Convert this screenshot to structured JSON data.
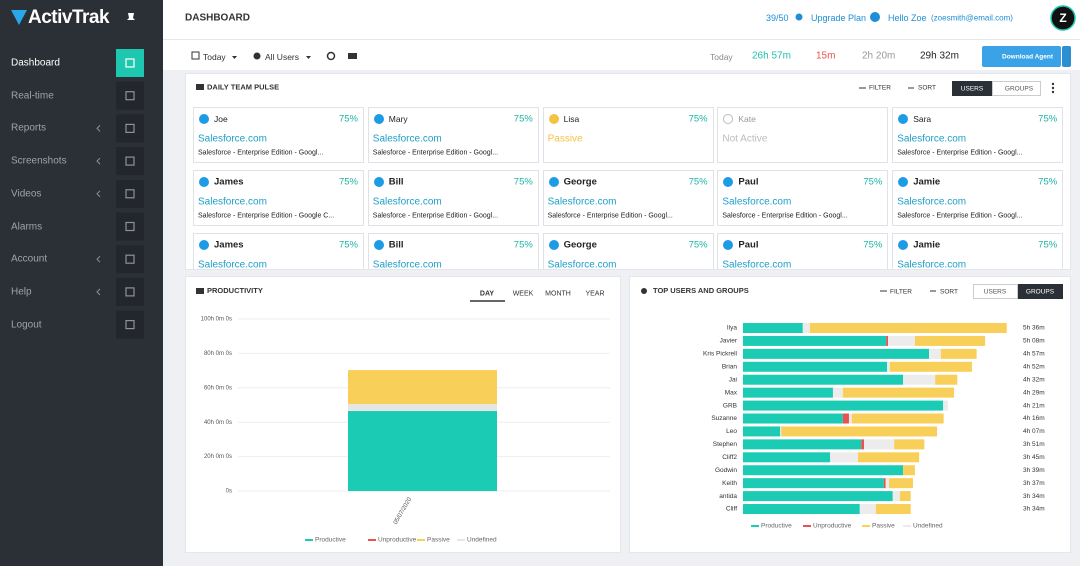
{
  "sidebar": {
    "logo": "ActivTrak",
    "items": [
      "Dashboard",
      "Real-time",
      "Reports",
      "Screenshots",
      "Videos",
      "Alarms",
      "Account",
      "Help",
      "Logout"
    ]
  },
  "header": {
    "title": "DASHBOARD",
    "license": "39/50",
    "upgrade": "Upgrade Plan",
    "greeting": "Hello Zoe",
    "email": "(zoesmith@email.com)",
    "avatar": "Z"
  },
  "toolbar": {
    "date": "Today",
    "users": "All Users",
    "summary_label": "Today",
    "productive": "26h 57m",
    "unproductive": "15m",
    "passive": "2h 20m",
    "total": "29h 32m",
    "download": "Download Agent"
  },
  "pulse": {
    "title": "DAILY TEAM PULSE",
    "filter": "FILTER",
    "sort": "SORT",
    "tabs": [
      "USERS",
      "GROUPS"
    ],
    "cards": [
      [
        {
          "name": "Joe",
          "percent": "75%",
          "app": "Salesforce.com",
          "detail": "Salesforce - Enterprise Edition - Googl...",
          "color": "#1e9be6"
        },
        {
          "name": "Mary",
          "percent": "75%",
          "app": "Salesforce.com",
          "detail": "Salesforce - Enterprise Edition - Googl...",
          "color": "#1e9be6"
        },
        {
          "name": "Lisa",
          "percent": "75%",
          "app": "Passive",
          "color": "#f5c342"
        },
        {
          "name": "Kate",
          "app": "Not Active",
          "color": "#b9bcc0"
        },
        {
          "name": "Sara",
          "percent": "75%",
          "app": "Salesforce.com",
          "detail": "Salesforce - Enterprise Edition - Googl...",
          "color": "#1e9be6"
        }
      ],
      [
        {
          "name": "James",
          "percent": "75%",
          "app": "Salesforce.com",
          "detail": "Salesforce - Enterprise Edition - Google C...",
          "color": "#1e9be6"
        },
        {
          "name": "Bill",
          "percent": "75%",
          "app": "Salesforce.com",
          "detail": "Salesforce - Enterprise Edition - Googl...",
          "color": "#1e9be6"
        },
        {
          "name": "George",
          "percent": "75%",
          "app": "Salesforce.com",
          "detail": "Salesforce - Enterprise Edition - Googl...",
          "color": "#1e9be6"
        },
        {
          "name": "Paul",
          "percent": "75%",
          "app": "Salesforce.com",
          "detail": "Salesforce - Enterprise Edition - Googl...",
          "color": "#1e9be6"
        },
        {
          "name": "Jamie",
          "percent": "75%",
          "app": "Salesforce.com",
          "detail": "Salesforce - Enterprise Edition - Googl...",
          "color": "#1e9be6"
        }
      ],
      [
        {
          "name": "James",
          "percent": "75%",
          "app": "Salesforce.com",
          "color": "#1e9be6"
        },
        {
          "name": "Bill",
          "percent": "75%",
          "app": "Salesforce.com",
          "color": "#1e9be6"
        },
        {
          "name": "George",
          "percent": "75%",
          "app": "Salesforce.com",
          "color": "#1e9be6"
        },
        {
          "name": "Paul",
          "percent": "75%",
          "app": "Salesforce.com",
          "color": "#1e9be6"
        },
        {
          "name": "Jamie",
          "percent": "75%",
          "app": "Salesforce.com",
          "color": "#1e9be6"
        }
      ]
    ]
  },
  "productivity_panel": {
    "tabs": [
      "DAY",
      "WEEK",
      "MONTH",
      "YEAR"
    ]
  },
  "top_panel": {
    "filter": "FILTER",
    "sort": "SORT",
    "tabs": [
      "USERS",
      "GROUPS"
    ]
  },
  "chart_data": [
    {
      "type": "bar",
      "stacked": true,
      "title": "PRODUCTIVITY",
      "categories": [
        "05/07/2020"
      ],
      "series": [
        {
          "name": "Productive",
          "color": "#1ccbb4",
          "values": [
            46.5
          ]
        },
        {
          "name": "Unproductive",
          "color": "#e8534f",
          "values": [
            0
          ]
        },
        {
          "name": "Undefined",
          "color": "#e6e6e6",
          "values": [
            4
          ]
        },
        {
          "name": "Passive",
          "color": "#f8cf58",
          "values": [
            19.8
          ]
        }
      ],
      "ylim": [
        0,
        100
      ],
      "yticks": [
        {
          "value": 0,
          "label": "0s"
        },
        {
          "value": 20,
          "label": "20h 0m 0s"
        },
        {
          "value": 40,
          "label": "40h 0m 0s"
        },
        {
          "value": 60,
          "label": "60h 0m 0s"
        },
        {
          "value": 80,
          "label": "80h 0m 0s"
        },
        {
          "value": 100,
          "label": "100h 0m 0s"
        }
      ],
      "grid": true
    },
    {
      "type": "hbar",
      "stacked": true,
      "title": "TOP USERS AND GROUPS",
      "categories": [
        "Ilya",
        "Javier",
        "Kris Pickrell",
        "Brian",
        "Jai",
        "Max",
        "GRB",
        "Suzanne",
        "Leo",
        "Stephen",
        "Cliff2",
        "Godwin",
        "Keith",
        "antida",
        "Cliff"
      ],
      "total_labels": [
        "5h 36m",
        "5h 08m",
        "4h 57m",
        "4h 52m",
        "4h 32m",
        "4h 29m",
        "4h 21m",
        "4h 16m",
        "4h 07m",
        "3h 51m",
        "3h 45m",
        "3h 39m",
        "3h 37m",
        "3h 34m",
        "3h 34m"
      ],
      "series": [
        {
          "name": "Productive",
          "color": "#1ccbb4",
          "values": [
            1.27,
            3.04,
            3.95,
            3.06,
            3.4,
            1.91,
            4.25,
            2.12,
            0.79,
            2.51,
            1.85,
            3.4,
            2.99,
            3.18,
            2.48
          ]
        },
        {
          "name": "Unproductive",
          "color": "#e8534f",
          "values": [
            0,
            0.04,
            0,
            0,
            0,
            0,
            0,
            0.13,
            0,
            0.06,
            0,
            0,
            0.04,
            0,
            0
          ]
        },
        {
          "name": "Undefined",
          "color": "#ececec",
          "values": [
            0.15,
            0.57,
            0.25,
            0.06,
            0.68,
            0.21,
            0.1,
            0.06,
            0.02,
            0.64,
            0.59,
            0,
            0.07,
            0.15,
            0.34
          ]
        },
        {
          "name": "Passive",
          "color": "#f8cf58",
          "values": [
            4.18,
            1.49,
            0.76,
            1.74,
            0.47,
            2.36,
            0,
            1.95,
            3.31,
            0.64,
            1.3,
            0.25,
            0.51,
            0.23,
            0.74
          ]
        }
      ]
    }
  ]
}
